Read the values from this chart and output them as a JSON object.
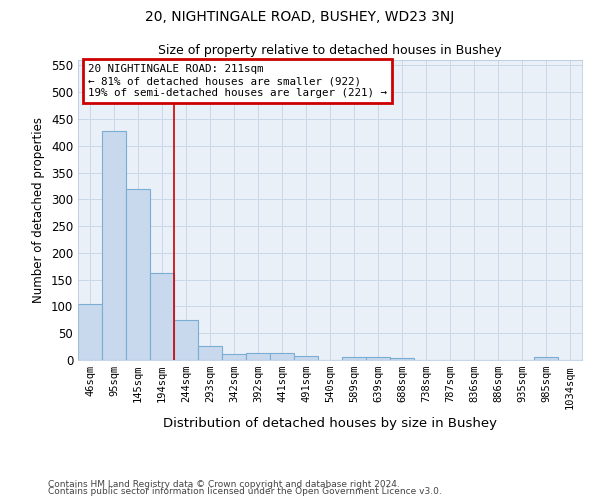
{
  "title1": "20, NIGHTINGALE ROAD, BUSHEY, WD23 3NJ",
  "title2": "Size of property relative to detached houses in Bushey",
  "xlabel": "Distribution of detached houses by size in Bushey",
  "ylabel": "Number of detached properties",
  "bar_labels": [
    "46sqm",
    "95sqm",
    "145sqm",
    "194sqm",
    "244sqm",
    "293sqm",
    "342sqm",
    "392sqm",
    "441sqm",
    "491sqm",
    "540sqm",
    "589sqm",
    "639sqm",
    "688sqm",
    "738sqm",
    "787sqm",
    "836sqm",
    "886sqm",
    "935sqm",
    "985sqm",
    "1034sqm"
  ],
  "bar_values": [
    105,
    428,
    320,
    163,
    75,
    27,
    12,
    14,
    13,
    8,
    0,
    5,
    5,
    4,
    0,
    0,
    0,
    0,
    0,
    5,
    0
  ],
  "bar_color": "#c8d9ee",
  "bar_edge_color": "#7aadd4",
  "property_line_x": 3.5,
  "annotation_line1": "20 NIGHTINGALE ROAD: 211sqm",
  "annotation_line2": "← 81% of detached houses are smaller (922)",
  "annotation_line3": "19% of semi-detached houses are larger (221) →",
  "annotation_box_color": "#ffffff",
  "annotation_box_edge": "#cc0000",
  "vline_color": "#cc0000",
  "grid_color": "#c8d8e8",
  "bg_color": "#eaf0f8",
  "ylim": [
    0,
    560
  ],
  "yticks": [
    0,
    50,
    100,
    150,
    200,
    250,
    300,
    350,
    400,
    450,
    500,
    550
  ],
  "footnote1": "Contains HM Land Registry data © Crown copyright and database right 2024.",
  "footnote2": "Contains public sector information licensed under the Open Government Licence v3.0."
}
